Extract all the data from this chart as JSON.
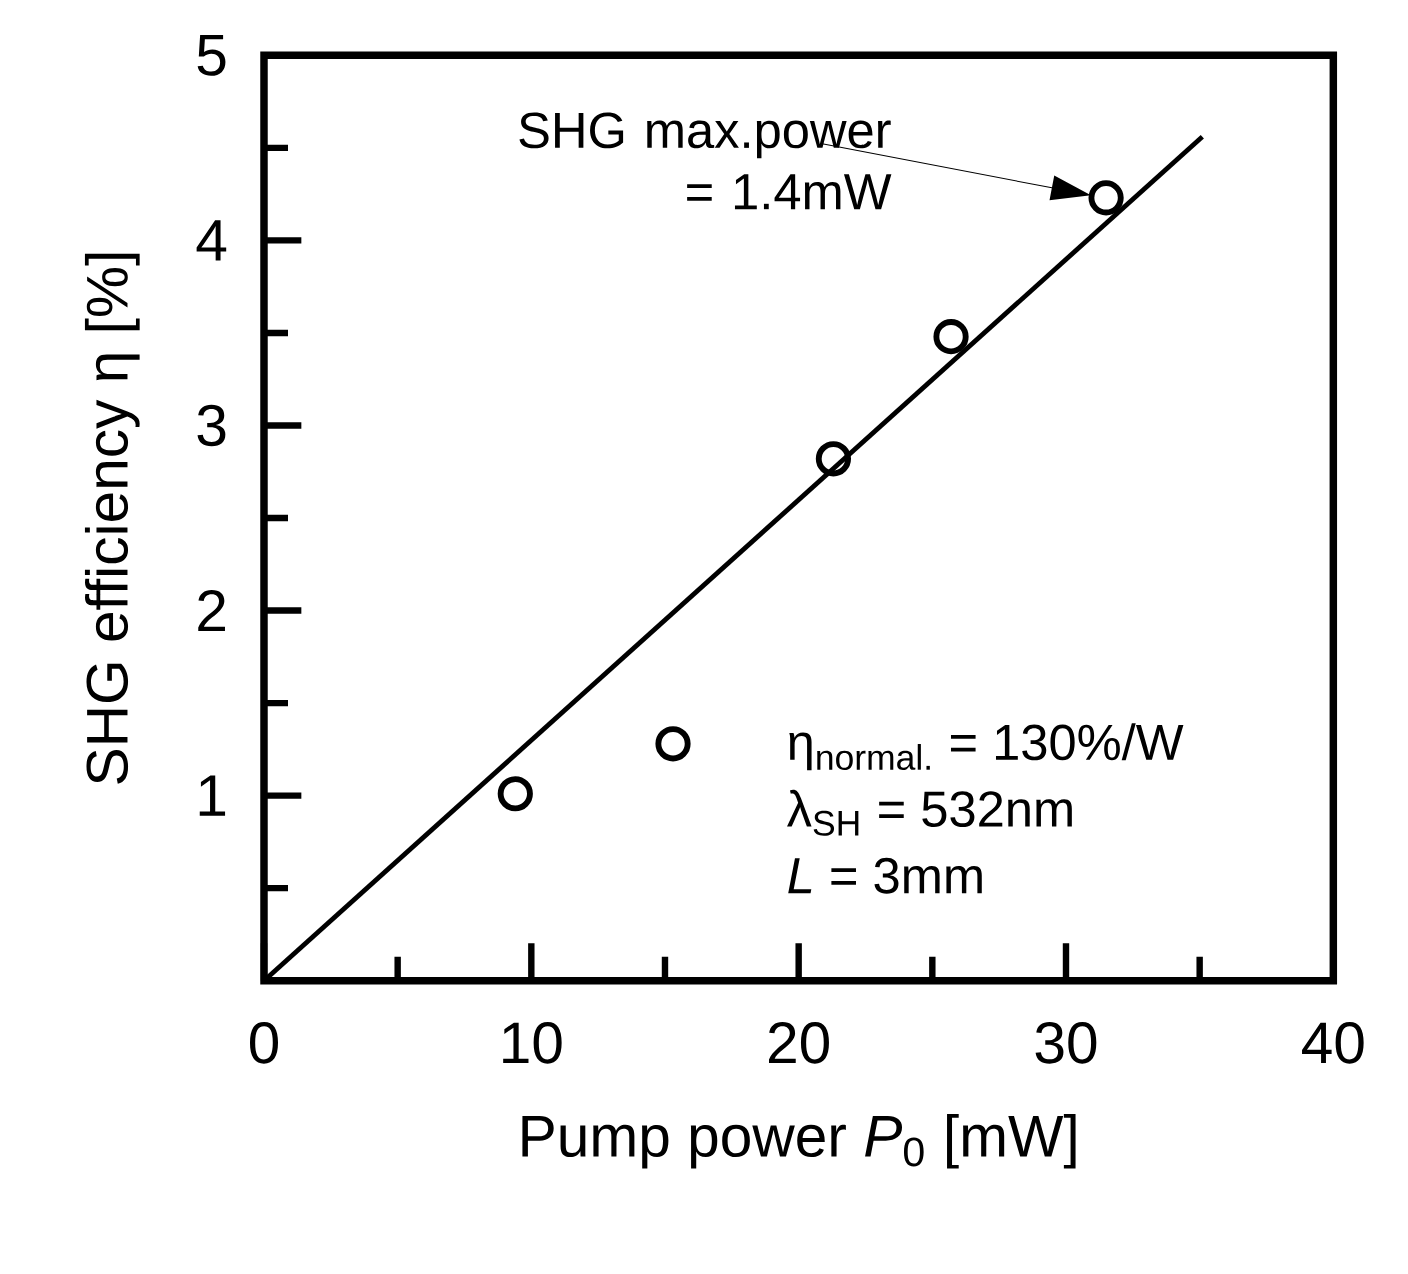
{
  "chart_data": {
    "type": "scatter",
    "xlabel": "Pump power *P*$_{0}$ [mW]",
    "ylabel": "SHG efficiency η [%]",
    "xlim": [
      0,
      40
    ],
    "ylim": [
      0,
      5
    ],
    "xticks": [
      0,
      {
        "value": 5,
        "label": null
      },
      10,
      {
        "value": 15,
        "label": null
      },
      20,
      {
        "value": 25,
        "label": null
      },
      30,
      {
        "value": 35,
        "label": null
      },
      40
    ],
    "yticks": [
      {
        "value": 0.5,
        "label": null
      },
      1,
      {
        "value": 1.5,
        "label": null
      },
      2,
      {
        "value": 2.5,
        "label": null
      },
      3,
      {
        "value": 3.5,
        "label": null
      },
      4,
      {
        "value": 4.5,
        "label": null
      },
      5
    ],
    "series": [
      {
        "color": "#000000",
        "marker": "circle",
        "x": [
          9.4,
          15.3,
          21.3,
          25.7,
          31.5
        ],
        "values": [
          1.01,
          1.28,
          2.82,
          3.48,
          4.23
        ]
      },
      {
        "type": "line",
        "color": "#000000",
        "marker": "none",
        "x": [
          0,
          35.1
        ],
        "values": [
          0,
          4.56
        ]
      }
    ],
    "annotations": [
      "SHG max.power = 1.4mW",
      "η$_{normal.}$ = 130%/W",
      "λ$_{SH}$ = 532nm",
      "*L* = 3mm"
    ]
  }
}
